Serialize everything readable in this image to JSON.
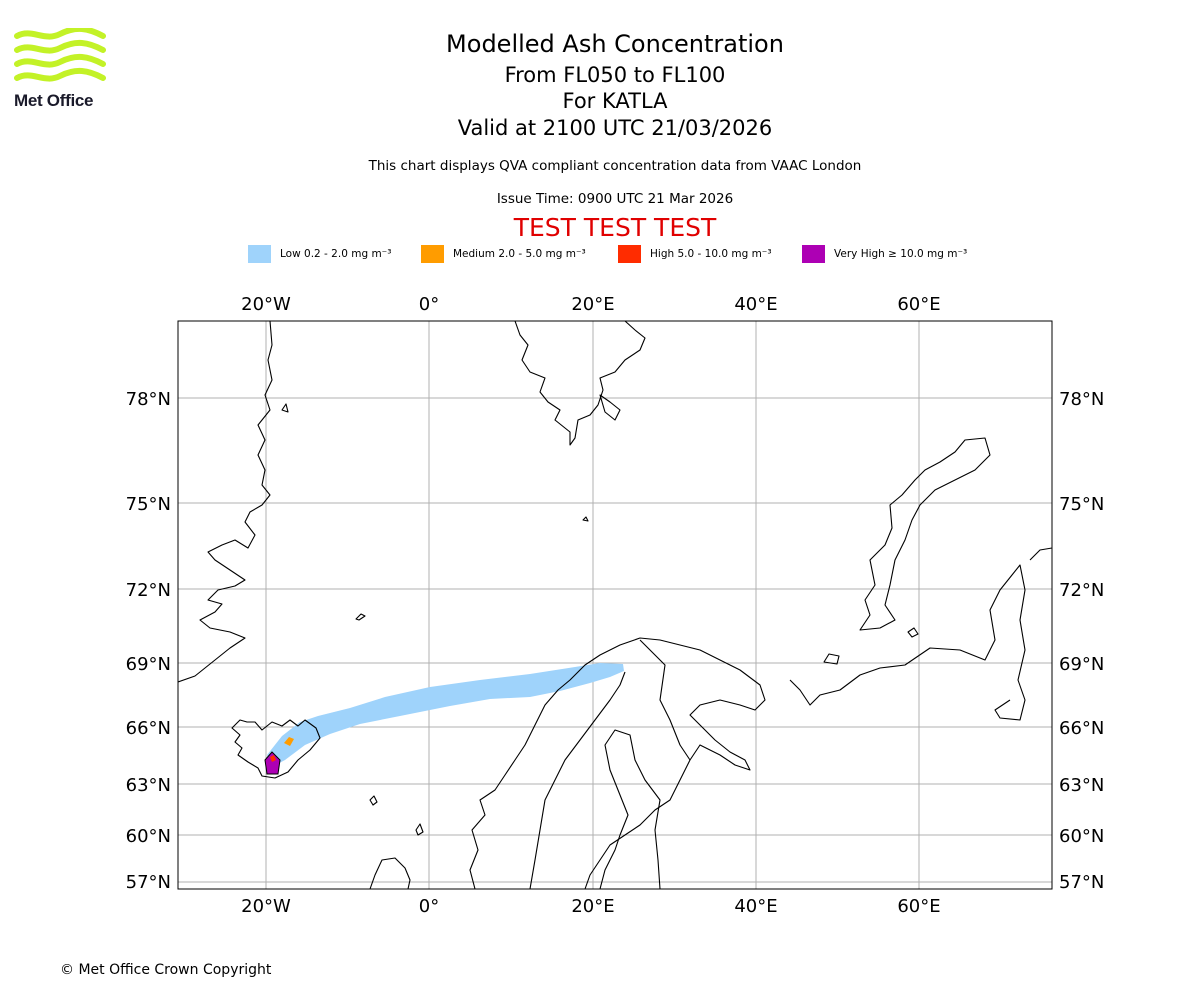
{
  "brand": {
    "name": "Met Office",
    "logo_color": "#c3f227"
  },
  "title": {
    "main": "Modelled Ash Concentration",
    "levels": "From FL050 to FL100",
    "volcano": "For KATLA",
    "valid": "Valid at 2100 UTC 21/03/2026"
  },
  "subtitle": "This chart displays QVA compliant concentration data from VAAC London",
  "issue_time": "Issue Time: 0900 UTC 21 Mar 2026",
  "test_banner": {
    "text": "TEST TEST TEST",
    "color": "#e00000"
  },
  "legend": [
    {
      "label": "Low 0.2 - 2.0 mg m⁻³",
      "color": "#9fd3fb"
    },
    {
      "label": "Medium 2.0 - 5.0 mg m⁻³",
      "color": "#ff9c00"
    },
    {
      "label": "High 5.0 - 10.0 mg m⁻³",
      "color": "#ff2c00"
    },
    {
      "label": "Very High ≥ 10.0 mg m⁻³",
      "color": "#ad00b4"
    }
  ],
  "map": {
    "lon_labels": [
      "20°W",
      "0°",
      "20°E",
      "40°E",
      "60°E"
    ],
    "lat_labels": [
      "78°N",
      "75°N",
      "72°N",
      "69°N",
      "66°N",
      "63°N",
      "60°N",
      "57°N"
    ],
    "gridline_color": "#b0b0b0",
    "coastline_color": "#000000"
  },
  "copyright": "© Met Office Crown Copyright"
}
